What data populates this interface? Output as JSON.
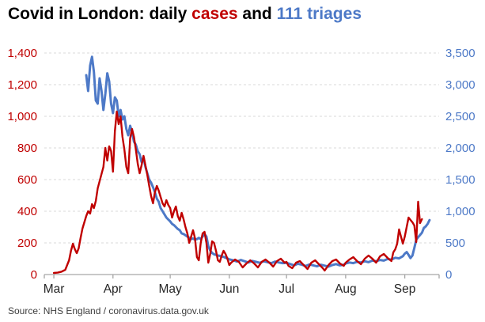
{
  "title": {
    "part1": "Covid in London: daily ",
    "cases_word": "cases",
    "and_word": " and ",
    "triages_word": "111 triages"
  },
  "source": "Source: NHS England / coronavirus.data.gov.uk",
  "colors": {
    "cases_red": "#c00000",
    "triages_blue": "#4d79c7",
    "grid": "#d9d9d9",
    "axis": "#a6a6a6",
    "month_text": "#262626"
  },
  "chart_data": {
    "type": "line",
    "title": "Covid in London: daily cases and 111 triages",
    "x_axis": {
      "unit": "days since 25 Feb 2020",
      "range_days": [
        0,
        207
      ],
      "tick_labels": [
        "Mar",
        "Apr",
        "May",
        "Jun",
        "Jul",
        "Aug",
        "Sep"
      ],
      "tick_days": [
        5,
        36,
        66,
        97,
        127,
        158,
        189
      ]
    },
    "left_axis": {
      "label_color": "#c00000",
      "range": [
        0,
        1400
      ],
      "tick_values": [
        0,
        200,
        400,
        600,
        800,
        1000,
        1200,
        1400
      ],
      "tick_labels": [
        "0",
        "200",
        "400",
        "600",
        "800",
        "1,000",
        "1,200",
        "1,400"
      ]
    },
    "right_axis": {
      "label_color": "#4d79c7",
      "range": [
        0,
        3500
      ],
      "tick_values": [
        0,
        500,
        1000,
        1500,
        2000,
        2500,
        3000,
        3500
      ],
      "tick_labels": [
        "0",
        "500",
        "1,000",
        "1,500",
        "2,000",
        "2,500",
        "3,000",
        "3,500"
      ]
    },
    "grid": "dashed-horizontal",
    "legend_position": "in-title",
    "series": [
      {
        "name": "111 triages",
        "axis": "right",
        "color": "#4d79c7",
        "stroke_width": 3,
        "points": [
          [
            22,
            3150
          ],
          [
            23,
            2900
          ],
          [
            24,
            3300
          ],
          [
            25,
            3440
          ],
          [
            26,
            3200
          ],
          [
            27,
            2750
          ],
          [
            28,
            2700
          ],
          [
            29,
            3100
          ],
          [
            30,
            2900
          ],
          [
            31,
            2600
          ],
          [
            32,
            2850
          ],
          [
            33,
            3180
          ],
          [
            34,
            3050
          ],
          [
            35,
            2700
          ],
          [
            36,
            2550
          ],
          [
            37,
            2800
          ],
          [
            38,
            2750
          ],
          [
            39,
            2500
          ],
          [
            40,
            2600
          ],
          [
            41,
            2450
          ],
          [
            42,
            2500
          ],
          [
            43,
            2300
          ],
          [
            44,
            2200
          ],
          [
            45,
            2350
          ],
          [
            46,
            2250
          ],
          [
            47,
            2100
          ],
          [
            48,
            2050
          ],
          [
            49,
            1950
          ],
          [
            50,
            1900
          ],
          [
            51,
            1780
          ],
          [
            52,
            1850
          ],
          [
            53,
            1700
          ],
          [
            54,
            1600
          ],
          [
            55,
            1500
          ],
          [
            56,
            1450
          ],
          [
            57,
            1380
          ],
          [
            58,
            1300
          ],
          [
            59,
            1200
          ],
          [
            60,
            1150
          ],
          [
            61,
            1050
          ],
          [
            62,
            1000
          ],
          [
            63,
            950
          ],
          [
            64,
            900
          ],
          [
            65,
            870
          ],
          [
            66,
            840
          ],
          [
            67,
            800
          ],
          [
            68,
            780
          ],
          [
            69,
            750
          ],
          [
            70,
            720
          ],
          [
            71,
            700
          ],
          [
            72,
            650
          ],
          [
            73,
            640
          ],
          [
            74,
            620
          ],
          [
            75,
            600
          ],
          [
            76,
            580
          ],
          [
            77,
            560
          ],
          [
            78,
            570
          ],
          [
            79,
            550
          ],
          [
            80,
            560
          ],
          [
            81,
            580
          ],
          [
            82,
            560
          ],
          [
            83,
            600
          ],
          [
            84,
            640
          ],
          [
            85,
            600
          ],
          [
            86,
            450
          ],
          [
            87,
            380
          ],
          [
            88,
            340
          ],
          [
            89,
            320
          ],
          [
            90,
            310
          ],
          [
            91,
            300
          ],
          [
            92,
            295
          ],
          [
            93,
            285
          ],
          [
            94,
            280
          ],
          [
            95,
            265
          ],
          [
            96,
            255
          ],
          [
            97,
            240
          ],
          [
            99,
            225
          ],
          [
            101,
            205
          ],
          [
            103,
            230
          ],
          [
            105,
            210
          ],
          [
            107,
            190
          ],
          [
            109,
            215
          ],
          [
            111,
            200
          ],
          [
            113,
            185
          ],
          [
            115,
            210
          ],
          [
            117,
            195
          ],
          [
            119,
            180
          ],
          [
            121,
            205
          ],
          [
            123,
            190
          ],
          [
            125,
            180
          ],
          [
            127,
            185
          ],
          [
            129,
            165
          ],
          [
            131,
            145
          ],
          [
            133,
            170
          ],
          [
            135,
            155
          ],
          [
            137,
            135
          ],
          [
            139,
            160
          ],
          [
            141,
            145
          ],
          [
            143,
            130
          ],
          [
            145,
            155
          ],
          [
            147,
            140
          ],
          [
            149,
            125
          ],
          [
            151,
            150
          ],
          [
            153,
            165
          ],
          [
            155,
            145
          ],
          [
            157,
            155
          ],
          [
            158,
            175
          ],
          [
            160,
            190
          ],
          [
            162,
            180
          ],
          [
            164,
            200
          ],
          [
            166,
            190
          ],
          [
            168,
            210
          ],
          [
            170,
            195
          ],
          [
            172,
            220
          ],
          [
            174,
            210
          ],
          [
            176,
            230
          ],
          [
            178,
            220
          ],
          [
            180,
            245
          ],
          [
            182,
            235
          ],
          [
            184,
            265
          ],
          [
            186,
            255
          ],
          [
            188,
            290
          ],
          [
            189,
            330
          ],
          [
            190,
            355
          ],
          [
            191,
            310
          ],
          [
            192,
            260
          ],
          [
            193,
            300
          ],
          [
            194,
            420
          ],
          [
            195,
            550
          ],
          [
            196,
            590
          ],
          [
            197,
            625
          ],
          [
            198,
            660
          ],
          [
            199,
            735
          ],
          [
            200,
            760
          ],
          [
            201,
            800
          ],
          [
            202,
            860
          ]
        ]
      },
      {
        "name": "daily cases",
        "axis": "left",
        "color": "#c00000",
        "stroke_width": 2.4,
        "points": [
          [
            5,
            10
          ],
          [
            7,
            12
          ],
          [
            9,
            18
          ],
          [
            11,
            30
          ],
          [
            12,
            60
          ],
          [
            13,
            90
          ],
          [
            14,
            150
          ],
          [
            15,
            195
          ],
          [
            16,
            160
          ],
          [
            17,
            135
          ],
          [
            18,
            165
          ],
          [
            19,
            230
          ],
          [
            20,
            290
          ],
          [
            21,
            330
          ],
          [
            22,
            370
          ],
          [
            23,
            400
          ],
          [
            24,
            385
          ],
          [
            25,
            445
          ],
          [
            26,
            420
          ],
          [
            27,
            465
          ],
          [
            28,
            545
          ],
          [
            29,
            590
          ],
          [
            30,
            635
          ],
          [
            31,
            680
          ],
          [
            32,
            800
          ],
          [
            33,
            720
          ],
          [
            34,
            810
          ],
          [
            35,
            780
          ],
          [
            36,
            650
          ],
          [
            37,
            905
          ],
          [
            38,
            1030
          ],
          [
            39,
            950
          ],
          [
            40,
            1000
          ],
          [
            41,
            870
          ],
          [
            42,
            790
          ],
          [
            43,
            680
          ],
          [
            44,
            640
          ],
          [
            45,
            860
          ],
          [
            46,
            920
          ],
          [
            47,
            870
          ],
          [
            48,
            790
          ],
          [
            49,
            700
          ],
          [
            50,
            640
          ],
          [
            51,
            690
          ],
          [
            52,
            750
          ],
          [
            53,
            690
          ],
          [
            54,
            630
          ],
          [
            55,
            560
          ],
          [
            56,
            495
          ],
          [
            57,
            450
          ],
          [
            58,
            520
          ],
          [
            59,
            560
          ],
          [
            60,
            530
          ],
          [
            61,
            490
          ],
          [
            62,
            450
          ],
          [
            63,
            430
          ],
          [
            64,
            470
          ],
          [
            65,
            440
          ],
          [
            66,
            420
          ],
          [
            67,
            360
          ],
          [
            68,
            400
          ],
          [
            69,
            430
          ],
          [
            70,
            370
          ],
          [
            71,
            340
          ],
          [
            72,
            390
          ],
          [
            73,
            350
          ],
          [
            74,
            300
          ],
          [
            75,
            260
          ],
          [
            76,
            200
          ],
          [
            77,
            240
          ],
          [
            78,
            280
          ],
          [
            79,
            230
          ],
          [
            80,
            110
          ],
          [
            81,
            90
          ],
          [
            82,
            200
          ],
          [
            83,
            260
          ],
          [
            84,
            270
          ],
          [
            85,
            200
          ],
          [
            86,
            75
          ],
          [
            87,
            130
          ],
          [
            88,
            210
          ],
          [
            89,
            200
          ],
          [
            90,
            150
          ],
          [
            91,
            90
          ],
          [
            92,
            80
          ],
          [
            93,
            120
          ],
          [
            94,
            150
          ],
          [
            95,
            130
          ],
          [
            96,
            100
          ],
          [
            97,
            60
          ],
          [
            98,
            75
          ],
          [
            100,
            95
          ],
          [
            102,
            80
          ],
          [
            104,
            45
          ],
          [
            106,
            70
          ],
          [
            108,
            90
          ],
          [
            110,
            70
          ],
          [
            112,
            45
          ],
          [
            114,
            80
          ],
          [
            116,
            95
          ],
          [
            118,
            75
          ],
          [
            120,
            50
          ],
          [
            122,
            85
          ],
          [
            124,
            100
          ],
          [
            126,
            75
          ],
          [
            127,
            80
          ],
          [
            128,
            55
          ],
          [
            130,
            40
          ],
          [
            132,
            75
          ],
          [
            134,
            85
          ],
          [
            136,
            60
          ],
          [
            138,
            35
          ],
          [
            140,
            75
          ],
          [
            142,
            90
          ],
          [
            144,
            65
          ],
          [
            146,
            40
          ],
          [
            147,
            25
          ],
          [
            149,
            60
          ],
          [
            151,
            85
          ],
          [
            153,
            95
          ],
          [
            155,
            70
          ],
          [
            157,
            55
          ],
          [
            158,
            75
          ],
          [
            160,
            95
          ],
          [
            162,
            110
          ],
          [
            164,
            85
          ],
          [
            166,
            65
          ],
          [
            168,
            100
          ],
          [
            170,
            120
          ],
          [
            172,
            100
          ],
          [
            174,
            75
          ],
          [
            176,
            115
          ],
          [
            178,
            130
          ],
          [
            180,
            105
          ],
          [
            182,
            85
          ],
          [
            183,
            140
          ],
          [
            184,
            160
          ],
          [
            185,
            195
          ],
          [
            186,
            285
          ],
          [
            187,
            240
          ],
          [
            188,
            195
          ],
          [
            189,
            240
          ],
          [
            190,
            300
          ],
          [
            191,
            360
          ],
          [
            192,
            345
          ],
          [
            193,
            330
          ],
          [
            194,
            310
          ],
          [
            195,
            205
          ],
          [
            196,
            460
          ],
          [
            197,
            325
          ],
          [
            198,
            350
          ]
        ]
      }
    ]
  }
}
